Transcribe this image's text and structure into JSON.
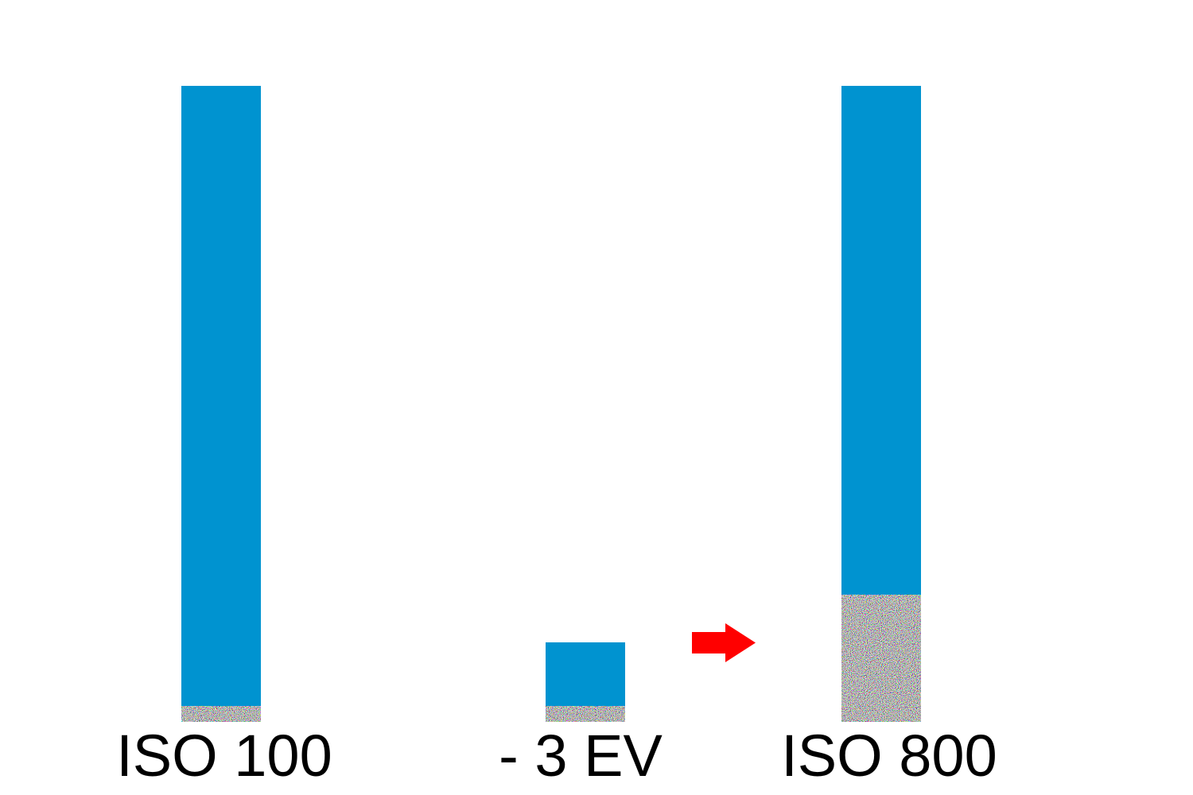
{
  "labels": [
    "ISO 100",
    "- 3 EV",
    "ISO 800"
  ]
}
